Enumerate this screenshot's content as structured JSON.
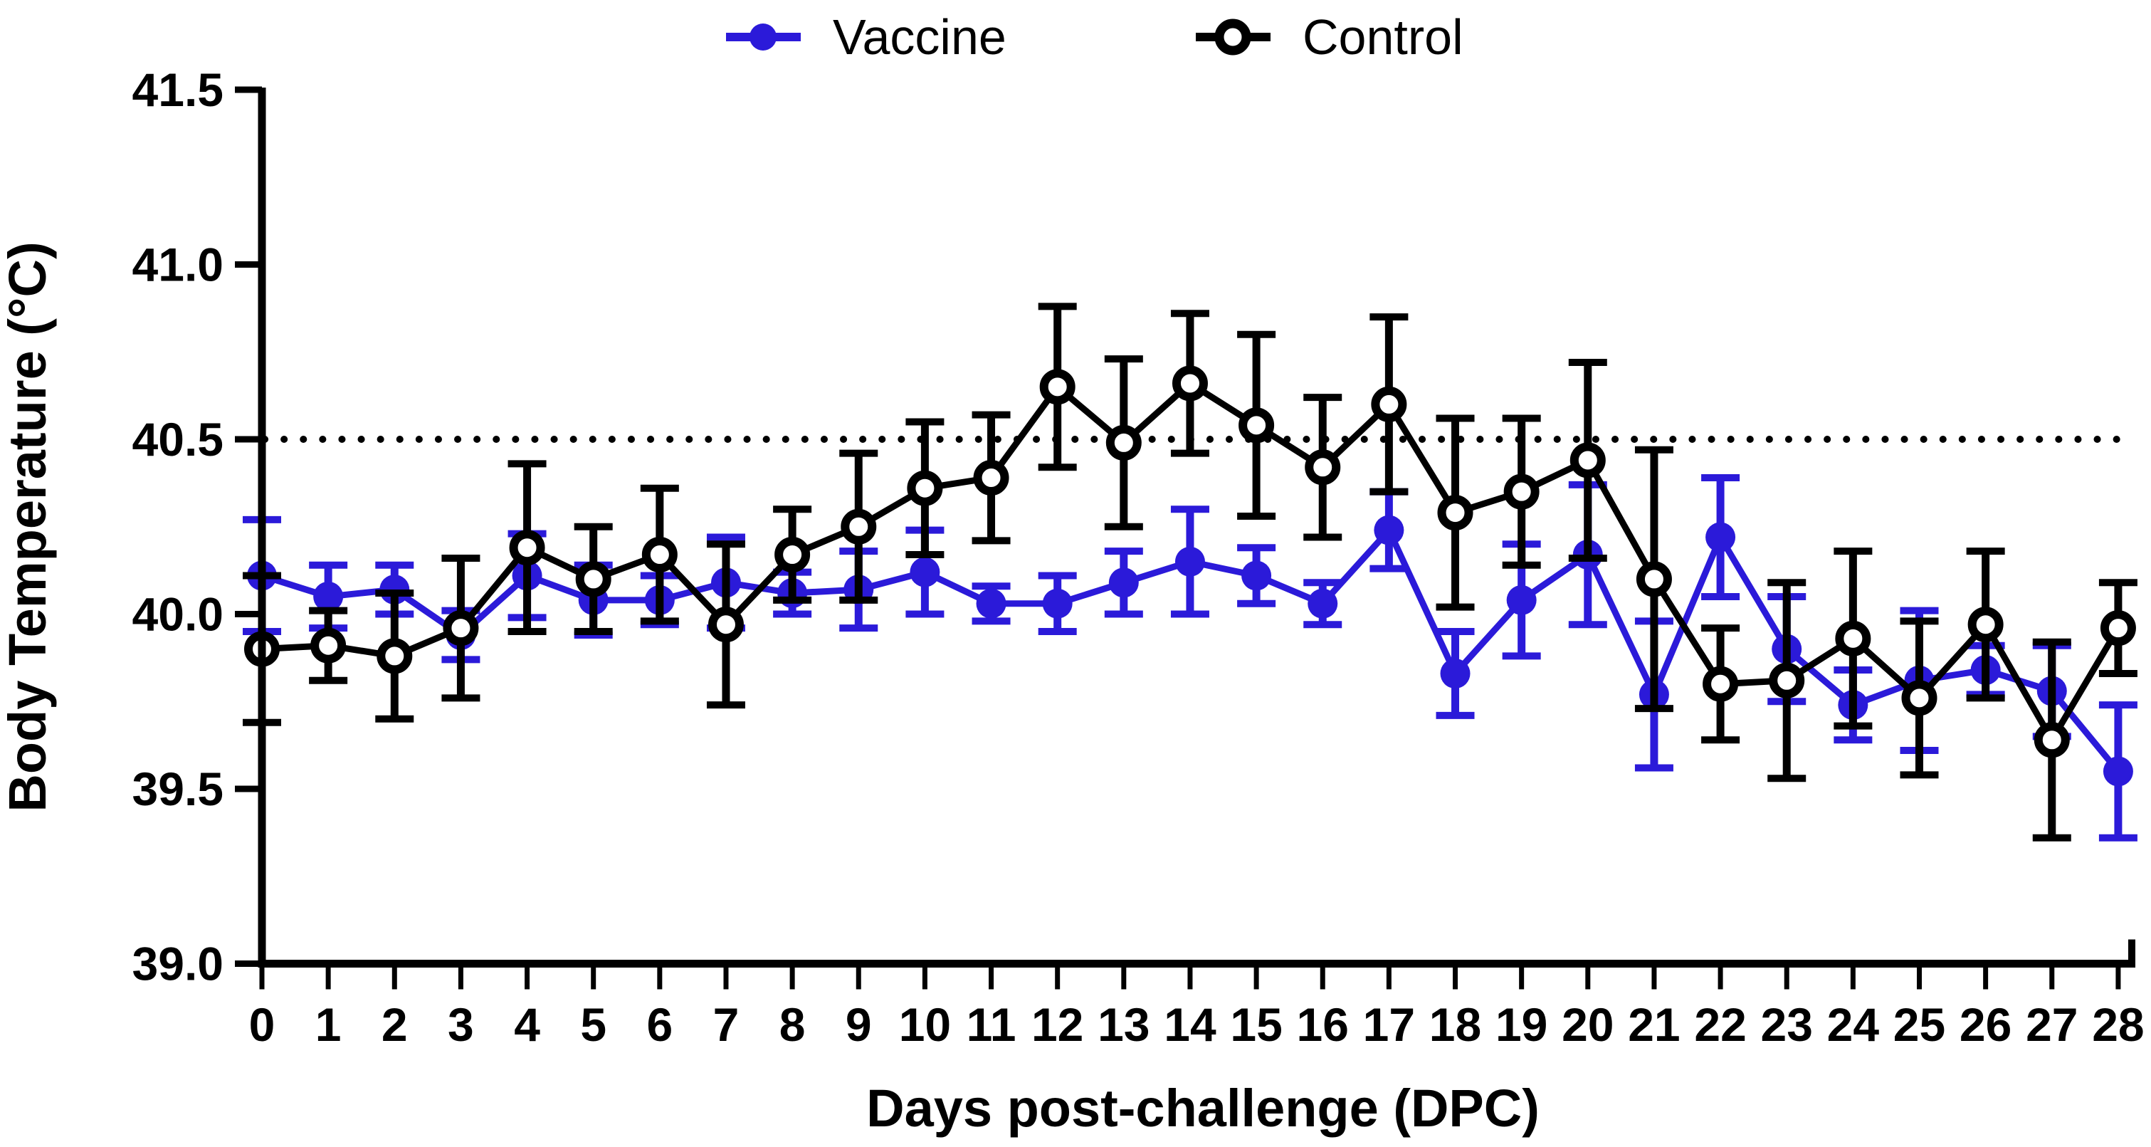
{
  "figure": {
    "background": "#ffffff"
  },
  "legend": {
    "position": "top",
    "items": [
      {
        "label": "Vaccine",
        "marker": "filled-circle",
        "color": "#2B1AD9"
      },
      {
        "label": "Control",
        "marker": "open-circle",
        "color": "#000000"
      }
    ]
  },
  "chart_data": {
    "type": "line",
    "title": "",
    "xlabel": "Days post-challenge (DPC)",
    "ylabel": "Body Temperature (°C)",
    "x": [
      0,
      1,
      2,
      3,
      4,
      5,
      6,
      7,
      8,
      9,
      10,
      11,
      12,
      13,
      14,
      15,
      16,
      17,
      18,
      19,
      20,
      21,
      22,
      23,
      24,
      25,
      26,
      27,
      28
    ],
    "xtick_labels": [
      "0",
      "1",
      "2",
      "3",
      "4",
      "5",
      "6",
      "7",
      "8",
      "9",
      "10",
      "11",
      "12",
      "13",
      "14",
      "15",
      "16",
      "17",
      "18",
      "19",
      "20",
      "21",
      "22",
      "23",
      "24",
      "25",
      "26",
      "27",
      "28"
    ],
    "ylim": [
      39.0,
      41.5
    ],
    "yticks": [
      39.0,
      39.5,
      40.0,
      40.5,
      41.0,
      41.5
    ],
    "ytick_labels": [
      "39.0",
      "39.5",
      "40.0",
      "40.5",
      "41.0",
      "41.5"
    ],
    "grid": false,
    "legend_position": "top-center",
    "reference_line": {
      "y": 40.5,
      "style": "dotted",
      "color": "#000000"
    },
    "error_bar_style": "mean ± error, capped",
    "series": [
      {
        "name": "Vaccine",
        "color": "#2B1AD9",
        "marker": "filled-circle",
        "values": [
          40.11,
          40.05,
          40.07,
          39.94,
          40.11,
          40.04,
          40.04,
          40.09,
          40.06,
          40.07,
          40.12,
          40.03,
          40.03,
          40.09,
          40.15,
          40.11,
          40.03,
          40.24,
          39.83,
          40.04,
          40.17,
          39.77,
          40.22,
          39.9,
          39.74,
          39.81,
          39.84,
          39.78,
          39.55
        ],
        "errors": [
          0.16,
          0.09,
          0.07,
          0.07,
          0.12,
          0.1,
          0.07,
          0.13,
          0.06,
          0.11,
          0.12,
          0.05,
          0.08,
          0.09,
          0.15,
          0.08,
          0.06,
          0.11,
          0.12,
          0.16,
          0.2,
          0.21,
          0.17,
          0.15,
          0.1,
          0.2,
          0.07,
          0.13,
          0.19
        ]
      },
      {
        "name": "Control",
        "color": "#000000",
        "marker": "open-circle",
        "values": [
          39.9,
          39.91,
          39.88,
          39.96,
          40.19,
          40.1,
          40.17,
          39.97,
          40.17,
          40.25,
          40.36,
          40.39,
          40.65,
          40.49,
          40.66,
          40.54,
          40.42,
          40.6,
          40.29,
          40.35,
          40.44,
          40.1,
          39.8,
          39.81,
          39.93,
          39.76,
          39.97,
          39.64,
          39.96
        ],
        "errors": [
          0.21,
          0.1,
          0.18,
          0.2,
          0.24,
          0.15,
          0.19,
          0.23,
          0.13,
          0.21,
          0.19,
          0.18,
          0.23,
          0.24,
          0.2,
          0.26,
          0.2,
          0.25,
          0.27,
          0.21,
          0.28,
          0.37,
          0.16,
          0.28,
          0.25,
          0.22,
          0.21,
          0.28,
          0.13
        ]
      }
    ]
  }
}
